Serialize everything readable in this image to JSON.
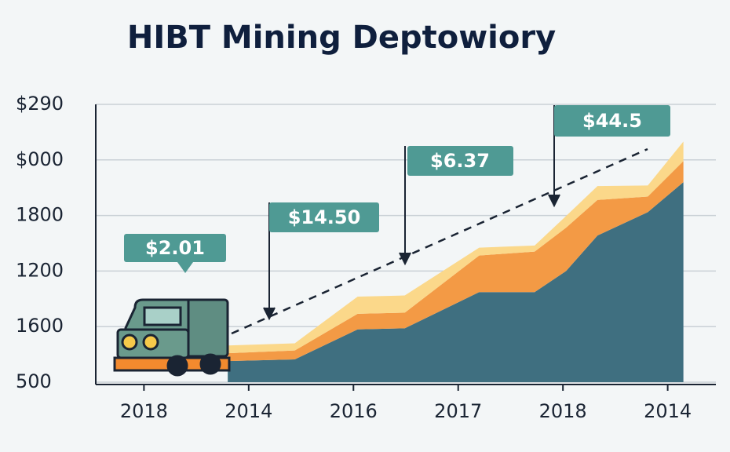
{
  "chart_data": {
    "type": "stacked_area",
    "title": "HIBT Mining Deptowiory",
    "categories": [
      "2018",
      "2014",
      "2016",
      "2017",
      "2018",
      "2014"
    ],
    "x": [
      0.8,
      1.44,
      2.04,
      2.49,
      3.2,
      3.73,
      4.03,
      4.33,
      4.81,
      5.15
    ],
    "xlim": [
      -0.46,
      5.46
    ],
    "ylim": [
      0,
      5
    ],
    "yticks": [
      {
        "value": 0,
        "label": "500"
      },
      {
        "value": 1,
        "label": "1600"
      },
      {
        "value": 2,
        "label": "1200"
      },
      {
        "value": 3,
        "label": "1800"
      },
      {
        "value": 4,
        "label": "$000"
      },
      {
        "value": 5,
        "label": "$290"
      }
    ],
    "grid": true,
    "series": [
      {
        "color": "#3f6f80",
        "values": [
          0.38,
          0.41,
          0.95,
          0.97,
          1.62,
          1.62,
          2.0,
          2.64,
          3.06,
          3.6
        ]
      },
      {
        "color": "#f39a45",
        "values": [
          0.14,
          0.16,
          0.28,
          0.28,
          0.66,
          0.73,
          0.78,
          0.64,
          0.28,
          0.38
        ]
      },
      {
        "color": "#fbd88a",
        "values": [
          0.14,
          0.13,
          0.31,
          0.31,
          0.14,
          0.11,
          0.21,
          0.25,
          0.2,
          0.35
        ]
      }
    ],
    "annotations": [
      "$2.01",
      "$14.50",
      "$6.37",
      "$44.5"
    ]
  }
}
